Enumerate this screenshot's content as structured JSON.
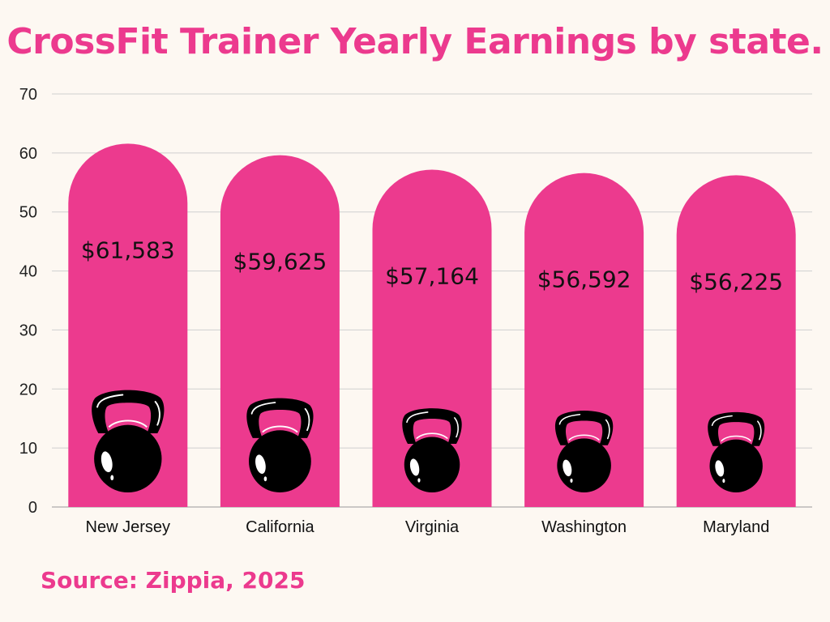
{
  "chart_data": {
    "type": "bar",
    "title": "CrossFit Trainer Yearly Earnings by state.",
    "source": "Source: Zippia, 2025",
    "categories": [
      "New Jersey",
      "California",
      "Virginia",
      "Washington",
      "Maryland"
    ],
    "values": [
      61.583,
      59.625,
      57.164,
      56.592,
      56.225
    ],
    "data_labels": [
      "$61,583",
      "$59,625",
      "$57,164",
      "$56,592",
      "$56,225"
    ],
    "ylim": [
      0,
      70
    ],
    "yticks": [
      0,
      10,
      20,
      30,
      40,
      50,
      60,
      70
    ],
    "grid": true,
    "bar_shape": "rounded-top",
    "decoration": "kettlebell-icon",
    "colors": {
      "bar": "#ec3a8e",
      "title": "#ec3a8e",
      "grid": "#cfcfcf",
      "kettlebell": "#000000"
    }
  }
}
